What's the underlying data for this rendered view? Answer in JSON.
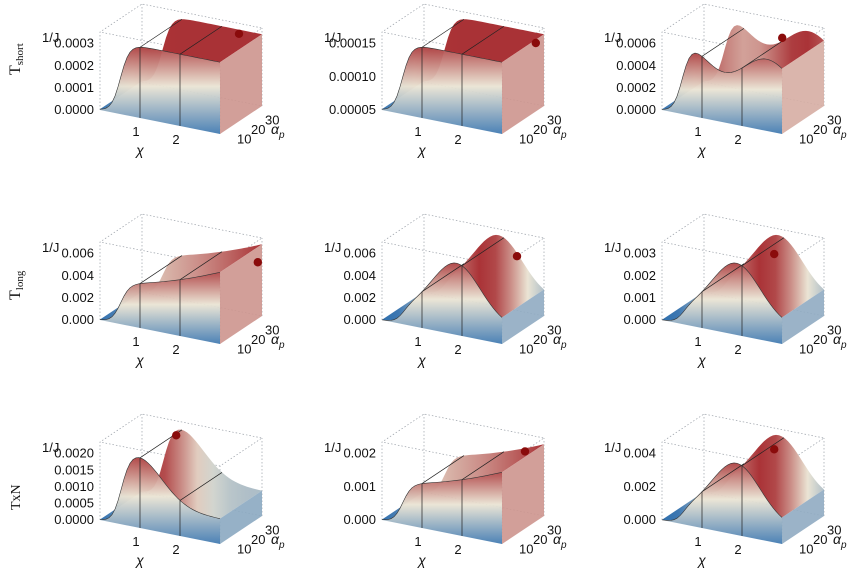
{
  "row_labels": [
    "T",
    "T",
    "TxN"
  ],
  "row_label_subs": [
    "short",
    "long",
    ""
  ],
  "colors": {
    "low": "#2f6fae",
    "mid": "#eae4d4",
    "high": "#a21e24",
    "marker": "#8a0b0b",
    "box": "#9aa0a8"
  },
  "chart_data": [
    {
      "type": "surface",
      "zlabel": "1/J",
      "xlabel": "χ",
      "ylabel": "α_p",
      "x_ticks": [
        "1",
        "2"
      ],
      "y_ticks": [
        "10",
        "20",
        "30"
      ],
      "z_ticks": [
        "0.0003",
        "0.0002",
        "0.0001",
        "0.0000"
      ],
      "zlim": [
        0,
        0.00036
      ],
      "shape": "plateau",
      "peak": {
        "x": 2.6,
        "y": 30,
        "z": 0.00034
      }
    },
    {
      "type": "surface",
      "zlabel": "1/J",
      "xlabel": "χ",
      "ylabel": "α_p",
      "x_ticks": [
        "1",
        "2"
      ],
      "y_ticks": [
        "10",
        "20",
        "30"
      ],
      "z_ticks": [
        "0.00015",
        "0.00010",
        "0.00005"
      ],
      "zlim": [
        0,
        0.00018
      ],
      "shape": "plateau",
      "peak": {
        "x": 2.9,
        "y": 32,
        "z": 0.00015
      }
    },
    {
      "type": "surface",
      "zlabel": "1/J",
      "xlabel": "χ",
      "ylabel": "α_p",
      "x_ticks": [
        "1",
        "2"
      ],
      "y_ticks": [
        "10",
        "20",
        "30"
      ],
      "z_ticks": [
        "0.0006",
        "0.0004",
        "0.0002",
        "0.0000"
      ],
      "zlim": [
        0,
        0.0008
      ],
      "shape": "ridge",
      "peak": {
        "x": 2.2,
        "y": 28,
        "z": 0.0007
      }
    },
    {
      "type": "surface",
      "zlabel": "1/J",
      "xlabel": "χ",
      "ylabel": "α_p",
      "x_ticks": [
        "1",
        "2"
      ],
      "y_ticks": [
        "10",
        "20",
        "30"
      ],
      "z_ticks": [
        "0.006",
        "0.004",
        "0.002",
        "0.000"
      ],
      "zlim": [
        0,
        0.008
      ],
      "shape": "late-rise",
      "peak": {
        "x": 3.0,
        "y": 32,
        "z": 0.0058
      }
    },
    {
      "type": "surface",
      "zlabel": "1/J",
      "xlabel": "χ",
      "ylabel": "α_p",
      "x_ticks": [
        "1",
        "2"
      ],
      "y_ticks": [
        "10",
        "20",
        "30"
      ],
      "z_ticks": [
        "0.006",
        "0.004",
        "0.002",
        "0.000"
      ],
      "zlim": [
        0,
        0.008
      ],
      "shape": "hump",
      "peak": {
        "x": 2.5,
        "y": 30,
        "z": 0.0062
      }
    },
    {
      "type": "surface",
      "zlabel": "1/J",
      "xlabel": "χ",
      "ylabel": "α_p",
      "x_ticks": [
        "1",
        "2"
      ],
      "y_ticks": [
        "10",
        "20",
        "30"
      ],
      "z_ticks": [
        "0.003",
        "0.002",
        "0.001",
        "0.000"
      ],
      "zlim": [
        0,
        0.004
      ],
      "shape": "hump",
      "peak": {
        "x": 2.0,
        "y": 28,
        "z": 0.0031
      }
    },
    {
      "type": "surface",
      "zlabel": "1/J",
      "xlabel": "χ",
      "ylabel": "α_p",
      "x_ticks": [
        "1",
        "2"
      ],
      "y_ticks": [
        "10",
        "20",
        "30"
      ],
      "z_ticks": [
        "0.0020",
        "0.0015",
        "0.0010",
        "0.0005",
        "0.0000"
      ],
      "zlim": [
        0,
        0.0026
      ],
      "shape": "early-peak",
      "peak": {
        "x": 1.1,
        "y": 28,
        "z": 0.0024
      }
    },
    {
      "type": "surface",
      "zlabel": "1/J",
      "xlabel": "χ",
      "ylabel": "α_p",
      "x_ticks": [
        "1",
        "2"
      ],
      "y_ticks": [
        "10",
        "20",
        "30"
      ],
      "z_ticks": [
        "0.002",
        "0.001",
        "0.000"
      ],
      "zlim": [
        0,
        0.0028
      ],
      "shape": "late-rise",
      "peak": {
        "x": 2.7,
        "y": 30,
        "z": 0.0024
      }
    },
    {
      "type": "surface",
      "zlabel": "1/J",
      "xlabel": "χ",
      "ylabel": "α_p",
      "x_ticks": [
        "1",
        "2"
      ],
      "y_ticks": [
        "10",
        "20",
        "30"
      ],
      "z_ticks": [
        "0.004",
        "0.002",
        "0.000"
      ],
      "zlim": [
        0,
        0.0055
      ],
      "shape": "hump",
      "peak": {
        "x": 2.0,
        "y": 28,
        "z": 0.0046
      }
    }
  ]
}
